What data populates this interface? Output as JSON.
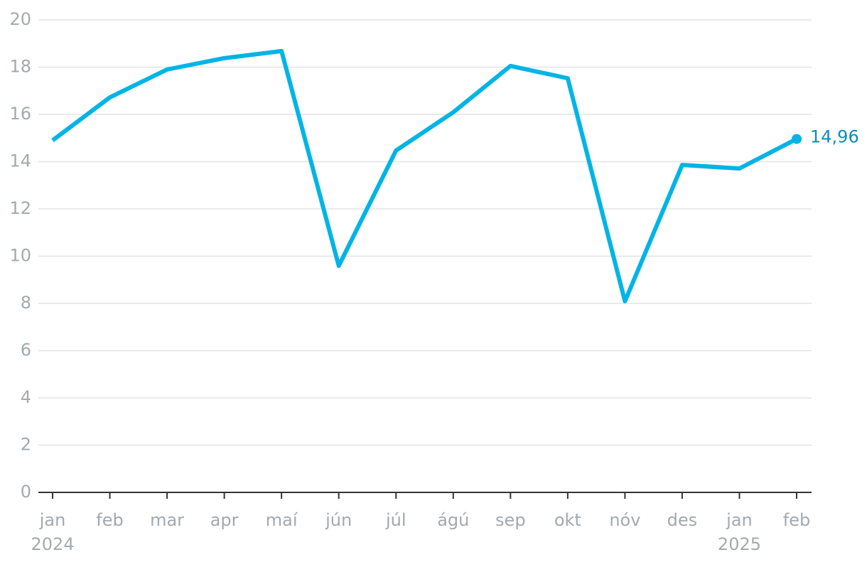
{
  "chart_data": {
    "type": "line",
    "categories": [
      "jan",
      "feb",
      "mar",
      "apr",
      "maí",
      "jún",
      "júl",
      "ágú",
      "sep",
      "okt",
      "nóv",
      "des",
      "jan",
      "feb"
    ],
    "year_labels": [
      "2024",
      null,
      null,
      null,
      null,
      null,
      null,
      null,
      null,
      null,
      null,
      null,
      "2025",
      null
    ],
    "series": [
      {
        "color": "#00b4e6",
        "values": [
          14.9,
          16.72,
          17.9,
          18.38,
          18.68,
          9.59,
          14.47,
          16.09,
          18.05,
          17.53,
          8.09,
          13.86,
          13.71,
          14.96
        ],
        "value_labels": [
          null,
          null,
          null,
          null,
          null,
          null,
          null,
          null,
          null,
          null,
          null,
          null,
          null,
          "14,96"
        ]
      }
    ],
    "ylim": [
      0,
      20
    ],
    "yticks": [
      0,
      2,
      4,
      6,
      8,
      10,
      12,
      14,
      16,
      18,
      20
    ],
    "grid": true
  }
}
